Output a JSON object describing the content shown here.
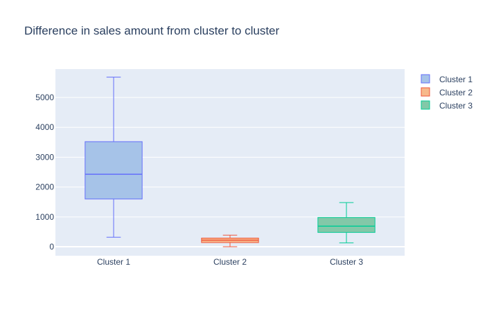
{
  "chart_data": {
    "type": "box",
    "title": "Difference in sales amount from cluster to cluster",
    "xlabel": "",
    "ylabel": "",
    "categories": [
      "Cluster 1",
      "Cluster 2",
      "Cluster 3"
    ],
    "ylim": [
      -300,
      5950
    ],
    "yticks": [
      0,
      1000,
      2000,
      3000,
      4000,
      5000
    ],
    "grid": true,
    "legend_position": "top-right",
    "series": [
      {
        "name": "Cluster 1",
        "min": 320,
        "q1": 1600,
        "median": 2430,
        "q3": 3520,
        "max": 5680,
        "color": "#636efa",
        "fill": "#a6c3e8"
      },
      {
        "name": "Cluster 2",
        "min": 0,
        "q1": 140,
        "median": 220,
        "q3": 290,
        "max": 390,
        "color": "#ef553b",
        "fill": "#f7b98c"
      },
      {
        "name": "Cluster 3",
        "min": 130,
        "q1": 480,
        "median": 690,
        "q3": 980,
        "max": 1480,
        "color": "#00cc96",
        "fill": "#83c8a8"
      }
    ]
  }
}
